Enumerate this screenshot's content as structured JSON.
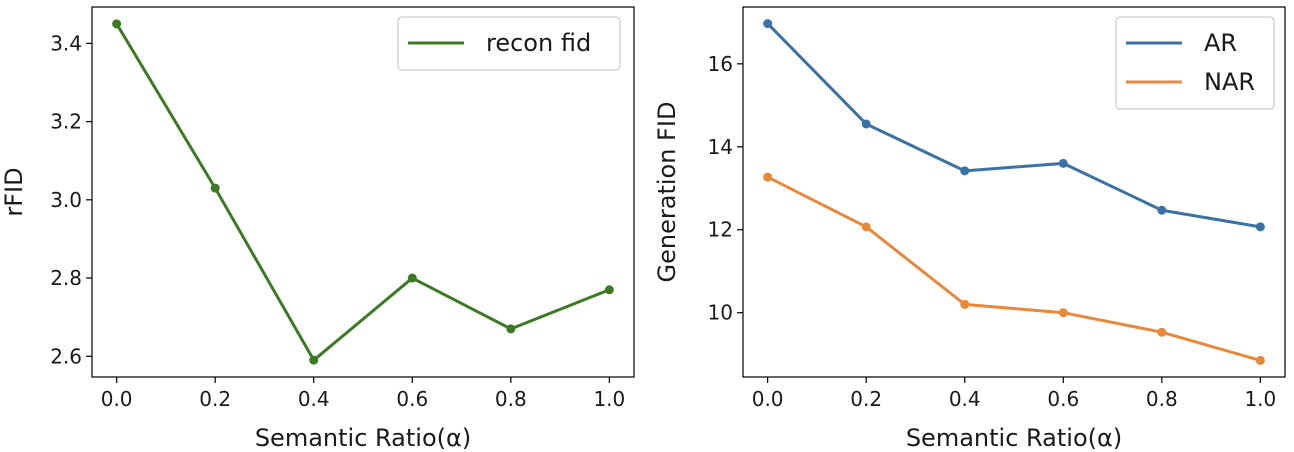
{
  "chart_data": [
    {
      "type": "line",
      "xlabel": "Semantic Ratio(α)",
      "ylabel": "rFID",
      "x": [
        0.0,
        0.2,
        0.4,
        0.6,
        0.8,
        1.0
      ],
      "xticks": [
        "0.0",
        "0.2",
        "0.4",
        "0.6",
        "0.8",
        "1.0"
      ],
      "yticks": [
        "2.6",
        "2.8",
        "3.0",
        "3.2",
        "3.4"
      ],
      "ytick_values": [
        2.6,
        2.8,
        3.0,
        3.2,
        3.4
      ],
      "xlim": [
        -0.05,
        1.05
      ],
      "ylim": [
        2.547,
        3.493
      ],
      "legend_position": "top-right",
      "grid": false,
      "series": [
        {
          "name": "recon fid",
          "color": "#3b7a22",
          "values": [
            3.45,
            3.03,
            2.59,
            2.8,
            2.67,
            2.77
          ]
        }
      ]
    },
    {
      "type": "line",
      "xlabel": "Semantic Ratio(α)",
      "ylabel": "Generation FID",
      "x": [
        0.0,
        0.2,
        0.4,
        0.6,
        0.8,
        1.0
      ],
      "xticks": [
        "0.0",
        "0.2",
        "0.4",
        "0.6",
        "0.8",
        "1.0"
      ],
      "yticks": [
        "10",
        "12",
        "14",
        "16"
      ],
      "ytick_values": [
        10,
        12,
        14,
        16
      ],
      "xlim": [
        -0.05,
        1.05
      ],
      "ylim": [
        8.45,
        17.37
      ],
      "legend_position": "top-right",
      "grid": false,
      "series": [
        {
          "name": "AR",
          "color": "#3a72a5",
          "values": [
            16.97,
            14.55,
            13.42,
            13.6,
            12.47,
            12.07
          ]
        },
        {
          "name": "NAR",
          "color": "#e8883a",
          "values": [
            13.27,
            12.07,
            10.2,
            10.0,
            9.53,
            8.85
          ]
        }
      ]
    }
  ]
}
